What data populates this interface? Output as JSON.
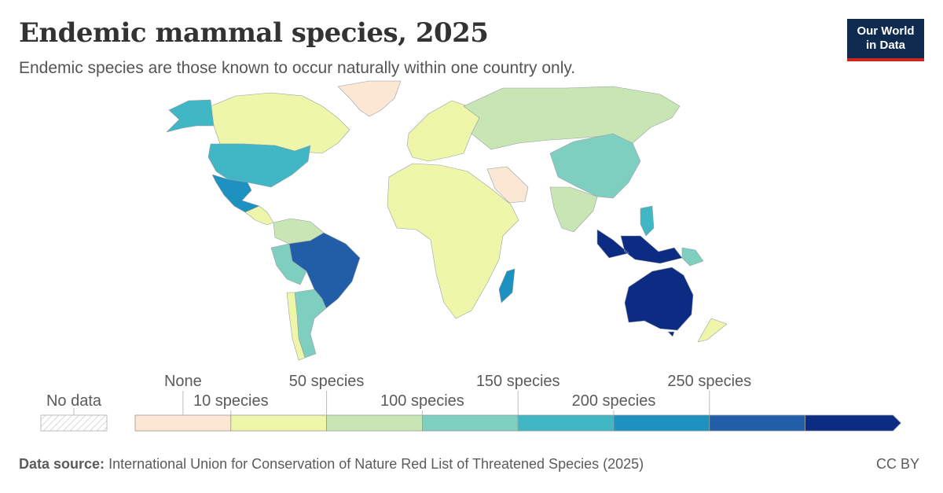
{
  "header": {
    "title": "Endemic mammal species, 2025",
    "subtitle": "Endemic species are those known to occur naturally within one country only."
  },
  "logo": {
    "line1": "Our World",
    "line2": "in Data"
  },
  "legend": {
    "no_data_label": "No data",
    "bins": [
      {
        "label": "None",
        "color": "#fbe7d4"
      },
      {
        "label": "10 species",
        "color": "#eef6a9"
      },
      {
        "label": "50 species",
        "color": "#c7e6b3"
      },
      {
        "label": "100 species",
        "color": "#7fcfc0"
      },
      {
        "label": "150 species",
        "color": "#41b6c4"
      },
      {
        "label": "200 species",
        "color": "#1d91c0"
      },
      {
        "label": "250 species",
        "color": "#225ea8"
      },
      {
        "label": "",
        "color": "#0c2c84"
      }
    ]
  },
  "regions": [
    {
      "name": "Canada",
      "color": "#eef6a9"
    },
    {
      "name": "Alaska (United States)",
      "color": "#41b6c4"
    },
    {
      "name": "Greenland",
      "color": "#fbe7d4"
    },
    {
      "name": "United States",
      "color": "#41b6c4"
    },
    {
      "name": "Mexico",
      "color": "#1d91c0"
    },
    {
      "name": "Central America",
      "color": "#eef6a9"
    },
    {
      "name": "Colombia / Venezuela",
      "color": "#c7e6b3"
    },
    {
      "name": "Brazil",
      "color": "#225ea8"
    },
    {
      "name": "Peru",
      "color": "#7fcfc0"
    },
    {
      "name": "Argentina",
      "color": "#7fcfc0"
    },
    {
      "name": "Chile",
      "color": "#eef6a9"
    },
    {
      "name": "Europe",
      "color": "#eef6a9"
    },
    {
      "name": "Russia",
      "color": "#c7e6b3"
    },
    {
      "name": "Africa",
      "color": "#eef6a9"
    },
    {
      "name": "Arabian Peninsula",
      "color": "#fbe7d4"
    },
    {
      "name": "India",
      "color": "#c7e6b3"
    },
    {
      "name": "China",
      "color": "#7fcfc0"
    },
    {
      "name": "Madagascar",
      "color": "#1d91c0"
    },
    {
      "name": "Philippines",
      "color": "#41b6c4"
    },
    {
      "name": "Indonesia",
      "color": "#0c2c84"
    },
    {
      "name": "Papua New Guinea",
      "color": "#7fcfc0"
    },
    {
      "name": "Australia",
      "color": "#0c2c84"
    },
    {
      "name": "New Zealand",
      "color": "#eef6a9"
    }
  ],
  "footer": {
    "source_label": "Data source:",
    "source_text": "International Union for Conservation of Nature Red List of Threatened Species (2025)",
    "license": "CC BY"
  }
}
